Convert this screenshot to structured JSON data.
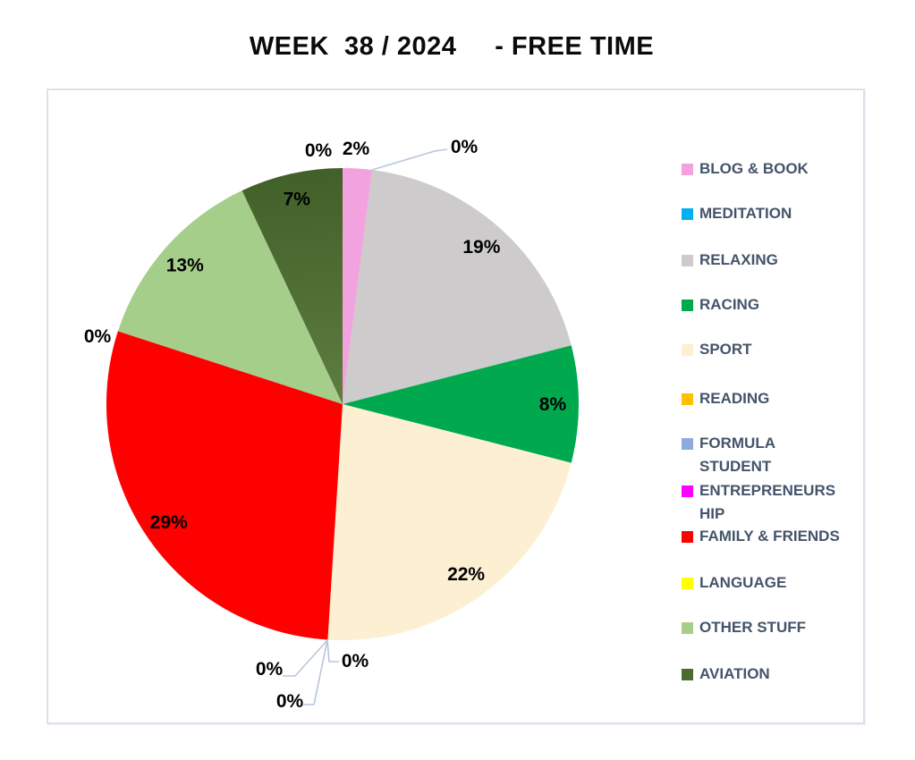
{
  "title": "WEEK  38 / 2024     - FREE TIME",
  "chart_data": {
    "type": "pie",
    "title": "WEEK  38 / 2024     - FREE TIME",
    "data_labels": "percent",
    "start_angle_deg": 0,
    "direction": "clockwise",
    "legend_position": "right",
    "legend_text_color": "#44546A",
    "leader_line_color": "#b7c6de",
    "frame_border_color": "#dce2ea",
    "slices": [
      {
        "label": "BLOG & BOOK",
        "value": 2,
        "color": "#F2A2DE"
      },
      {
        "label": "MEDITATION",
        "value": 0,
        "color": "#00B0F0"
      },
      {
        "label": "RELAXING",
        "value": 19,
        "color": "#CDCBCB"
      },
      {
        "label": "RACING",
        "value": 8,
        "color": "#00A94E"
      },
      {
        "label": "SPORT",
        "value": 22,
        "color": "#FCEFD2"
      },
      {
        "label": "READING",
        "value": 0,
        "color": "#FFC000"
      },
      {
        "label": "FORMULA STUDENT",
        "value": 0,
        "color": "#8FAADC"
      },
      {
        "label": "ENTREPRENEURSHIP",
        "value": 0,
        "color": "#FF00FF"
      },
      {
        "label": "FAMILY & FRIENDS",
        "value": 29,
        "color": "#FF0000"
      },
      {
        "label": "LANGUAGE",
        "value": 0,
        "color": "#FFFF00"
      },
      {
        "label": "OTHER STUFF",
        "value": 13,
        "color": "#A6CE8B"
      },
      {
        "label": "AVIATION",
        "value": 7,
        "color": "#4C6B2F",
        "gradient": [
          "#415F28",
          "#5E7D40"
        ]
      }
    ],
    "extra_zero_label": {
      "text": "0%",
      "position": "left-of-apex"
    }
  }
}
